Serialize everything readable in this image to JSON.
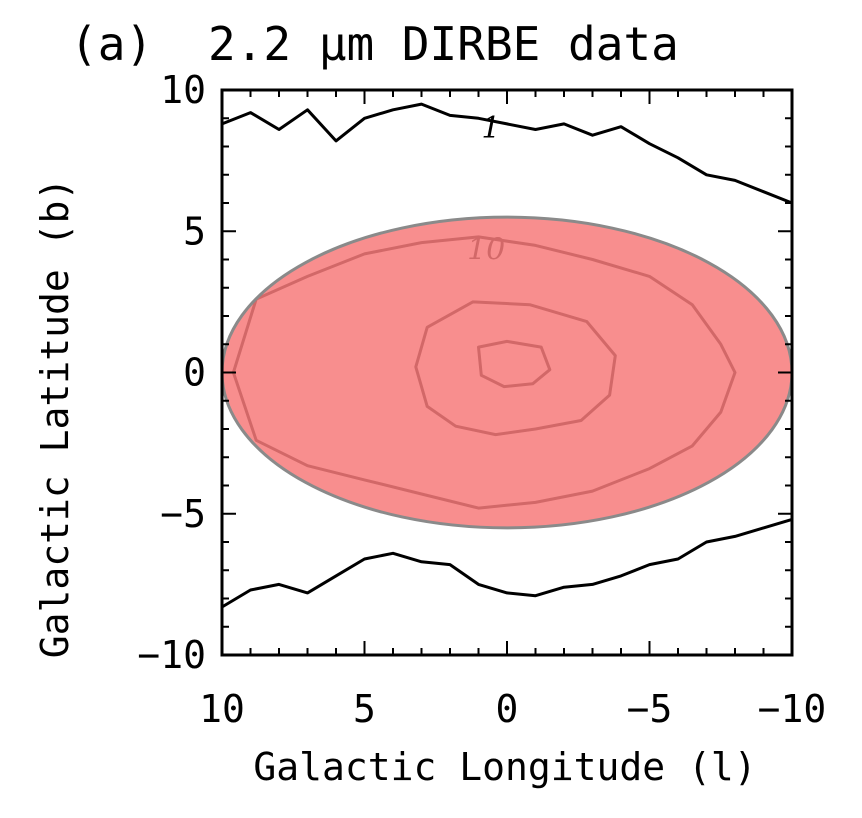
{
  "chart_data": {
    "type": "contour",
    "panel_label": "(a)",
    "title": "2.2 μm DIRBE data",
    "xlabel": "Galactic Longitude (l)",
    "ylabel": "Galactic Latitude (b)",
    "xlim": [
      10,
      -10
    ],
    "ylim": [
      -10,
      10
    ],
    "x_ticks": [
      10,
      5,
      0,
      -5,
      -10
    ],
    "x_tick_labels": [
      "10",
      "5",
      "0",
      "−5",
      "−10"
    ],
    "y_ticks": [
      10,
      5,
      0,
      -5,
      -10
    ],
    "y_tick_labels": [
      "10",
      "5",
      "0",
      "−5",
      "−10"
    ],
    "grid": false,
    "contour_levels": [
      {
        "label": "1",
        "points_top": [
          [
            10,
            8.8
          ],
          [
            9,
            9.2
          ],
          [
            8,
            8.6
          ],
          [
            7,
            9.3
          ],
          [
            6,
            8.2
          ],
          [
            5,
            9.0
          ],
          [
            4,
            9.3
          ],
          [
            3,
            9.5
          ],
          [
            2,
            9.1
          ],
          [
            1,
            9.0
          ],
          [
            0,
            8.8
          ],
          [
            -1,
            8.6
          ],
          [
            -2,
            8.8
          ],
          [
            -3,
            8.4
          ],
          [
            -4,
            8.7
          ],
          [
            -5,
            8.1
          ],
          [
            -6,
            7.6
          ],
          [
            -7,
            7.0
          ],
          [
            -8,
            6.8
          ],
          [
            -9,
            6.4
          ],
          [
            -10,
            6.0
          ]
        ],
        "points_bottom": [
          [
            10,
            -8.3
          ],
          [
            9,
            -7.7
          ],
          [
            8,
            -7.5
          ],
          [
            7,
            -7.8
          ],
          [
            6,
            -7.2
          ],
          [
            5,
            -6.6
          ],
          [
            4,
            -6.4
          ],
          [
            3,
            -6.7
          ],
          [
            2,
            -6.8
          ],
          [
            1,
            -7.5
          ],
          [
            0,
            -7.8
          ],
          [
            -1,
            -7.9
          ],
          [
            -2,
            -7.6
          ],
          [
            -3,
            -7.5
          ],
          [
            -4,
            -7.2
          ],
          [
            -5,
            -6.8
          ],
          [
            -6,
            -6.6
          ],
          [
            -7,
            -6.0
          ],
          [
            -8,
            -5.8
          ],
          [
            -9,
            -5.5
          ],
          [
            -10,
            -5.2
          ]
        ]
      },
      {
        "label": "10",
        "points": [
          [
            8.8,
            2.6
          ],
          [
            7,
            3.4
          ],
          [
            5,
            4.2
          ],
          [
            3,
            4.6
          ],
          [
            1,
            4.8
          ],
          [
            -1,
            4.5
          ],
          [
            -3,
            4.0
          ],
          [
            -5,
            3.4
          ],
          [
            -6.5,
            2.4
          ],
          [
            -7.5,
            1.0
          ],
          [
            -8,
            0
          ],
          [
            -7.5,
            -1.4
          ],
          [
            -6.5,
            -2.6
          ],
          [
            -5,
            -3.4
          ],
          [
            -3,
            -4.2
          ],
          [
            -1,
            -4.6
          ],
          [
            1,
            -4.8
          ],
          [
            3,
            -4.3
          ],
          [
            5,
            -3.8
          ],
          [
            7,
            -3.3
          ],
          [
            8.8,
            -2.4
          ],
          [
            9.6,
            0
          ],
          [
            8.8,
            2.6
          ]
        ]
      },
      {
        "label": "",
        "points": [
          [
            2.8,
            1.6
          ],
          [
            1.2,
            2.5
          ],
          [
            -0.8,
            2.4
          ],
          [
            -2.8,
            1.8
          ],
          [
            -3.8,
            0.6
          ],
          [
            -3.6,
            -0.8
          ],
          [
            -2.6,
            -1.7
          ],
          [
            -1,
            -2.0
          ],
          [
            0.4,
            -2.2
          ],
          [
            1.8,
            -1.9
          ],
          [
            2.8,
            -1.2
          ],
          [
            3.2,
            0.2
          ],
          [
            2.8,
            1.6
          ]
        ]
      },
      {
        "label": "",
        "points": [
          [
            1.0,
            0.9
          ],
          [
            0,
            1.1
          ],
          [
            -1.2,
            0.9
          ],
          [
            -1.5,
            0.1
          ],
          [
            -0.9,
            -0.4
          ],
          [
            0.1,
            -0.5
          ],
          [
            0.9,
            -0.1
          ],
          [
            1.0,
            0.9
          ]
        ]
      }
    ],
    "overlay": {
      "shape": "ellipse",
      "center": [
        0,
        0
      ],
      "semi_axis_l": 10,
      "semi_axis_b": 5.5,
      "fill_color": "#f77a7a",
      "fill_opacity": 0.85,
      "stroke_color": "#8a8a8a"
    }
  }
}
